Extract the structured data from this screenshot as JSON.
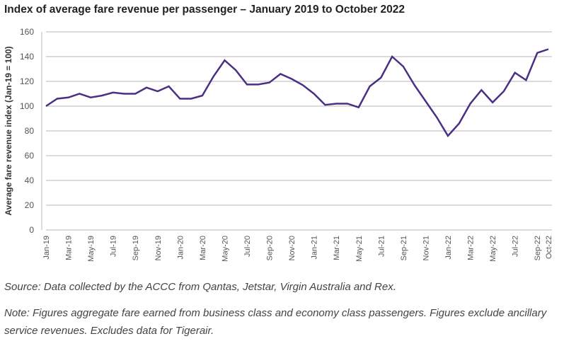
{
  "chart_data": {
    "type": "line",
    "title": "Index of average fare revenue per passenger – January 2019 to October 2022",
    "xlabel": "",
    "ylabel": "Average fare revenue index (Jan-19 = 100)",
    "ylim": [
      0,
      160
    ],
    "yticks": [
      0,
      20,
      40,
      60,
      80,
      100,
      120,
      140,
      160
    ],
    "grid": true,
    "line_color": "#4b2f85",
    "xticklabels": [
      "Jan-19",
      "Mar-19",
      "May-19",
      "Jul-19",
      "Sep-19",
      "Nov-19",
      "Jan-20",
      "Mar-20",
      "May-20",
      "Jul-20",
      "Sep-20",
      "Nov-20",
      "Jan-21",
      "Mar-21",
      "May-21",
      "Jul-21",
      "Sep-21",
      "Nov-21",
      "Jan-22",
      "Mar-22",
      "May-22",
      "Jul-22",
      "Sep-22",
      "Oct-22"
    ],
    "values": [
      100,
      106,
      107,
      110,
      107,
      108.5,
      111,
      110,
      110,
      115,
      112,
      116,
      106,
      106,
      108.5,
      124,
      137,
      129,
      117.5,
      117.5,
      119,
      126,
      122,
      117,
      110,
      101,
      102,
      102,
      99,
      116,
      123,
      140,
      132,
      117,
      104,
      91,
      76,
      86,
      102,
      113,
      103,
      112,
      127,
      121,
      143,
      146
    ]
  },
  "source": "Source: Data collected by the ACCC from Qantas, Jetstar, Virgin Australia and Rex.",
  "note": "Note: Figures aggregate fare earned from business class and economy class passengers. Figures exclude ancillary service revenues. Excludes data for Tigerair."
}
